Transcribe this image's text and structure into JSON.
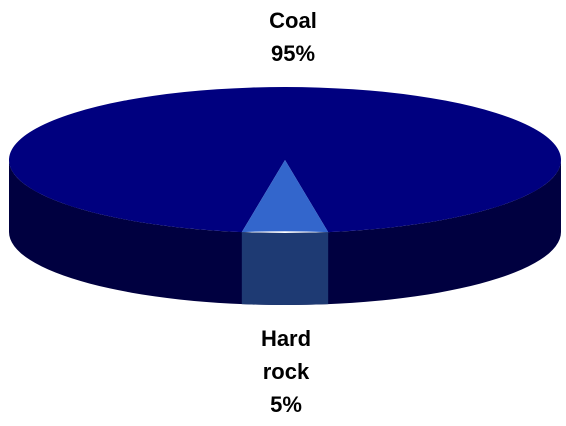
{
  "chart_data": {
    "type": "pie",
    "style": "3d",
    "title": "",
    "slices": [
      {
        "name": "Coal",
        "value": 95,
        "value_label": "95%",
        "color": "#00007f",
        "side_color": "#000040"
      },
      {
        "name": "Hard rock",
        "name_lines": [
          "Hard",
          "rock"
        ],
        "value": 5,
        "value_label": "5%",
        "color": "#3366cc",
        "side_color": "#1e3a73"
      }
    ]
  }
}
